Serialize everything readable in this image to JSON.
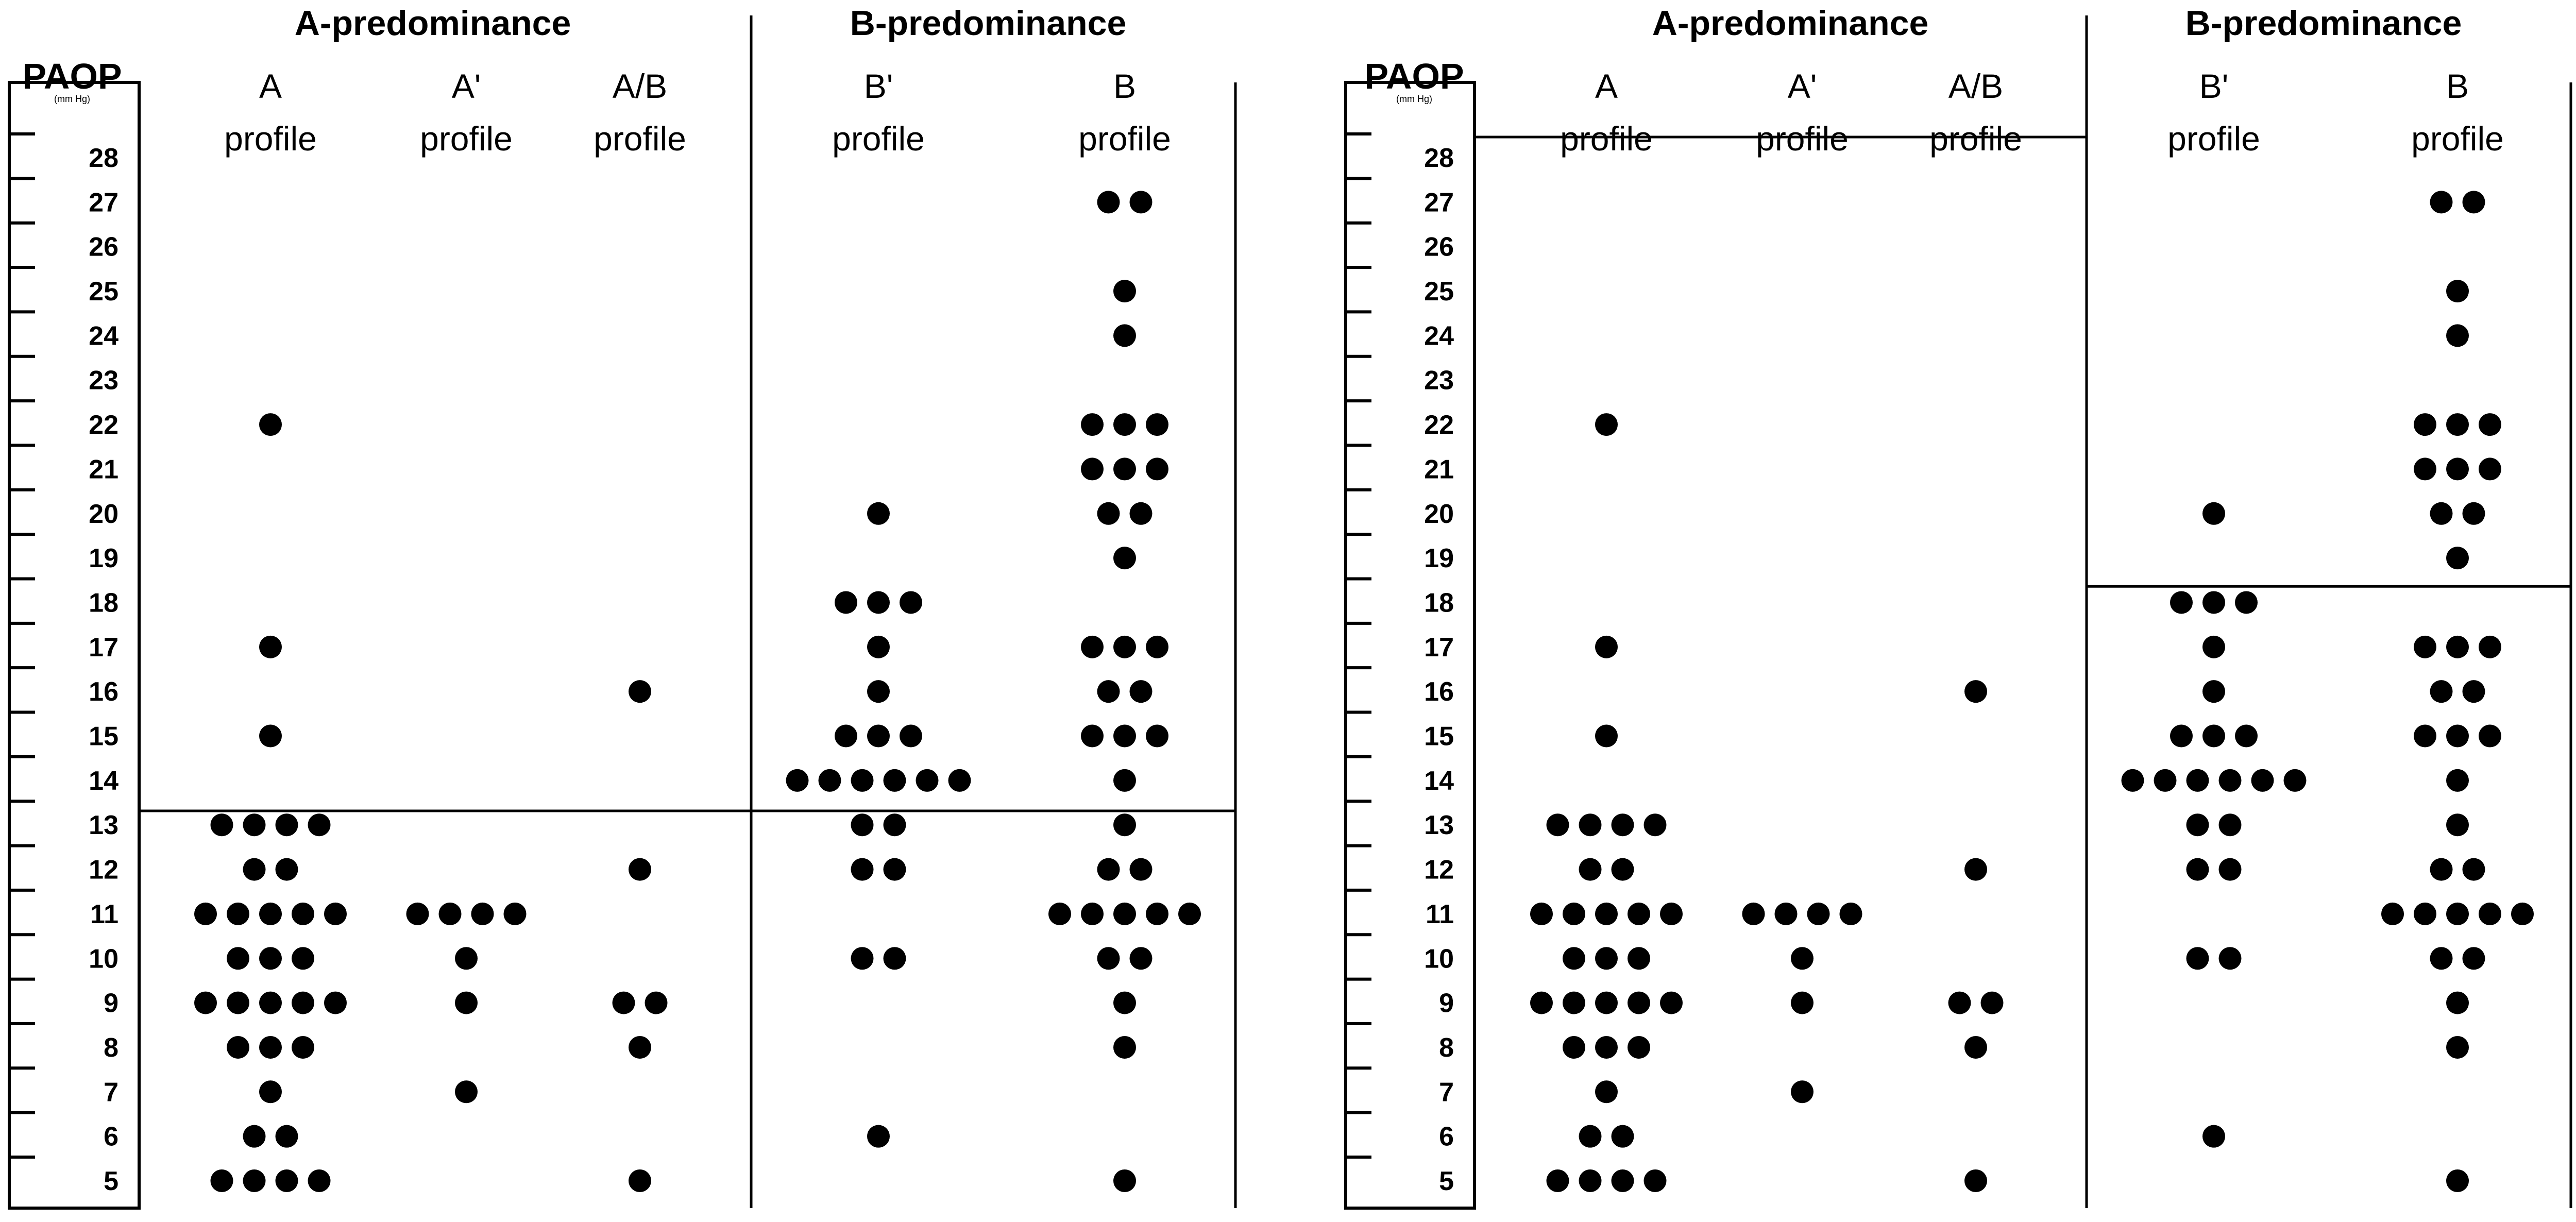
{
  "chart_data": [
    {
      "type": "scatter",
      "y_title": "PAOP",
      "y_unit": "(mm Hg)",
      "y_ticks": [
        "5",
        "6",
        "7",
        "8",
        "9",
        "10",
        "11",
        "12",
        "13",
        "14",
        "15",
        "16",
        "17",
        "18",
        "19",
        "20",
        "21",
        "22",
        "23",
        "24",
        "25",
        "26",
        "27",
        "28"
      ],
      "ylim": [
        5,
        28
      ],
      "groups": [
        {
          "label": "A-predominance",
          "columns": [
            "A",
            "A'",
            "A/B"
          ]
        },
        {
          "label": "B-predominance",
          "columns": [
            "B'",
            "B"
          ]
        }
      ],
      "columns": [
        {
          "key": "A",
          "line1": "A",
          "line2": "profile"
        },
        {
          "key": "A'",
          "line1": "A'",
          "line2": "profile"
        },
        {
          "key": "A/B",
          "line1": "A/B",
          "line2": "profile"
        },
        {
          "key": "B'",
          "line1": "B'",
          "line2": "profile"
        },
        {
          "key": "B",
          "line1": "B",
          "line2": "profile"
        }
      ],
      "threshold": {
        "type": "single",
        "paop": 13.5
      },
      "points": {
        "A": [
          {
            "paop": 5,
            "n": 4
          },
          {
            "paop": 6,
            "n": 2
          },
          {
            "paop": 7,
            "n": 1
          },
          {
            "paop": 8,
            "n": 3
          },
          {
            "paop": 9,
            "n": 5
          },
          {
            "paop": 10,
            "n": 3
          },
          {
            "paop": 11,
            "n": 5
          },
          {
            "paop": 12,
            "n": 2
          },
          {
            "paop": 13,
            "n": 4
          },
          {
            "paop": 15,
            "n": 1
          },
          {
            "paop": 17,
            "n": 1
          },
          {
            "paop": 22,
            "n": 1
          }
        ],
        "A'": [
          {
            "paop": 7,
            "n": 1
          },
          {
            "paop": 9,
            "n": 1
          },
          {
            "paop": 10,
            "n": 1
          },
          {
            "paop": 11,
            "n": 4
          }
        ],
        "A/B": [
          {
            "paop": 5,
            "n": 1
          },
          {
            "paop": 8,
            "n": 1
          },
          {
            "paop": 9,
            "n": 2
          },
          {
            "paop": 12,
            "n": 1
          },
          {
            "paop": 16,
            "n": 1
          }
        ],
        "B'": [
          {
            "paop": 6,
            "n": 1
          },
          {
            "paop": 10,
            "n": 2
          },
          {
            "paop": 12,
            "n": 2
          },
          {
            "paop": 13,
            "n": 2
          },
          {
            "paop": 14,
            "n": 6
          },
          {
            "paop": 15,
            "n": 3
          },
          {
            "paop": 16,
            "n": 1
          },
          {
            "paop": 17,
            "n": 1
          },
          {
            "paop": 18,
            "n": 3
          },
          {
            "paop": 20,
            "n": 1
          }
        ],
        "B": [
          {
            "paop": 5,
            "n": 1
          },
          {
            "paop": 8,
            "n": 1
          },
          {
            "paop": 9,
            "n": 1
          },
          {
            "paop": 10,
            "n": 2
          },
          {
            "paop": 11,
            "n": 5
          },
          {
            "paop": 12,
            "n": 2
          },
          {
            "paop": 13,
            "n": 1
          },
          {
            "paop": 14,
            "n": 1
          },
          {
            "paop": 15,
            "n": 3
          },
          {
            "paop": 16,
            "n": 2
          },
          {
            "paop": 17,
            "n": 3
          },
          {
            "paop": 19,
            "n": 1
          },
          {
            "paop": 20,
            "n": 2
          },
          {
            "paop": 21,
            "n": 3
          },
          {
            "paop": 22,
            "n": 3
          },
          {
            "paop": 24,
            "n": 1
          },
          {
            "paop": 25,
            "n": 1
          },
          {
            "paop": 27,
            "n": 2
          }
        ]
      }
    },
    {
      "type": "scatter",
      "y_title": "PAOP",
      "y_unit": "(mm Hg)",
      "y_ticks": [
        "5",
        "6",
        "7",
        "8",
        "9",
        "10",
        "11",
        "12",
        "13",
        "14",
        "15",
        "16",
        "17",
        "18",
        "19",
        "20",
        "21",
        "22",
        "23",
        "24",
        "25",
        "26",
        "27",
        "28"
      ],
      "ylim": [
        5,
        28
      ],
      "groups": [
        {
          "label": "A-predominance",
          "columns": [
            "A",
            "A'",
            "A/B"
          ]
        },
        {
          "label": "B-predominance",
          "columns": [
            "B'",
            "B"
          ]
        }
      ],
      "columns": [
        {
          "key": "A",
          "line1": "A",
          "line2": "profile"
        },
        {
          "key": "A'",
          "line1": "A'",
          "line2": "profile"
        },
        {
          "key": "A/B",
          "line1": "A/B",
          "line2": "profile"
        },
        {
          "key": "B'",
          "line1": "B'",
          "line2": "profile"
        },
        {
          "key": "B",
          "line1": "B",
          "line2": "profile"
        }
      ],
      "threshold": {
        "type": "split",
        "a_side_paop": 28,
        "b_side_paop": 18.5
      },
      "points": {
        "A": [
          {
            "paop": 5,
            "n": 4
          },
          {
            "paop": 6,
            "n": 2
          },
          {
            "paop": 7,
            "n": 1
          },
          {
            "paop": 8,
            "n": 3
          },
          {
            "paop": 9,
            "n": 5
          },
          {
            "paop": 10,
            "n": 3
          },
          {
            "paop": 11,
            "n": 5
          },
          {
            "paop": 12,
            "n": 2
          },
          {
            "paop": 13,
            "n": 4
          },
          {
            "paop": 15,
            "n": 1
          },
          {
            "paop": 17,
            "n": 1
          },
          {
            "paop": 22,
            "n": 1
          }
        ],
        "A'": [
          {
            "paop": 7,
            "n": 1
          },
          {
            "paop": 9,
            "n": 1
          },
          {
            "paop": 10,
            "n": 1
          },
          {
            "paop": 11,
            "n": 4
          }
        ],
        "A/B": [
          {
            "paop": 5,
            "n": 1
          },
          {
            "paop": 8,
            "n": 1
          },
          {
            "paop": 9,
            "n": 2
          },
          {
            "paop": 12,
            "n": 1
          },
          {
            "paop": 16,
            "n": 1
          }
        ],
        "B'": [
          {
            "paop": 6,
            "n": 1
          },
          {
            "paop": 10,
            "n": 2
          },
          {
            "paop": 12,
            "n": 2
          },
          {
            "paop": 13,
            "n": 2
          },
          {
            "paop": 14,
            "n": 6
          },
          {
            "paop": 15,
            "n": 3
          },
          {
            "paop": 16,
            "n": 1
          },
          {
            "paop": 17,
            "n": 1
          },
          {
            "paop": 18,
            "n": 3
          },
          {
            "paop": 20,
            "n": 1
          }
        ],
        "B": [
          {
            "paop": 5,
            "n": 1
          },
          {
            "paop": 8,
            "n": 1
          },
          {
            "paop": 9,
            "n": 1
          },
          {
            "paop": 10,
            "n": 2
          },
          {
            "paop": 11,
            "n": 5
          },
          {
            "paop": 12,
            "n": 2
          },
          {
            "paop": 13,
            "n": 1
          },
          {
            "paop": 14,
            "n": 1
          },
          {
            "paop": 15,
            "n": 3
          },
          {
            "paop": 16,
            "n": 2
          },
          {
            "paop": 17,
            "n": 3
          },
          {
            "paop": 19,
            "n": 1
          },
          {
            "paop": 20,
            "n": 2
          },
          {
            "paop": 21,
            "n": 3
          },
          {
            "paop": 22,
            "n": 3
          },
          {
            "paop": 24,
            "n": 1
          },
          {
            "paop": 25,
            "n": 1
          },
          {
            "paop": 27,
            "n": 2
          }
        ]
      }
    }
  ]
}
